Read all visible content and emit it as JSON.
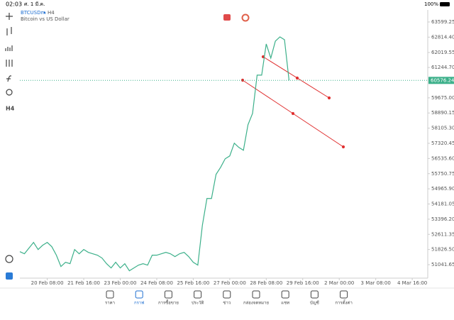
{
  "status_bar": {
    "time": "02:03",
    "date": "ศ. 1 มี.ค.",
    "battery": "100%"
  },
  "chart_header": {
    "symbol": "BTCUSDm",
    "timeframe": "H4",
    "description": "Bitcoin vs US Dollar"
  },
  "chart_data": {
    "type": "line",
    "color": "#3cb08a",
    "values": [
      51716,
      51606,
      51899,
      52193,
      51826,
      52046,
      52193,
      51973,
      51533,
      50946,
      51166,
      51093,
      51826,
      51606,
      51826,
      51679,
      51606,
      51533,
      51386,
      51093,
      50872,
      51166,
      50872,
      51093,
      50726,
      50872,
      51019,
      51093,
      51019,
      51533,
      51533,
      51606,
      51679,
      51606,
      51459,
      51606,
      51679,
      51459,
      51166,
      51019,
      53073,
      54467,
      54467,
      55714,
      56080,
      56521,
      56667,
      57327,
      57107,
      56961,
      58281,
      58868,
      60848,
      60848,
      62462,
      61729,
      62609,
      62829,
      62682,
      60576
    ],
    "xlim": [
      0,
      89.4
    ],
    "xticks": [
      {
        "value": 6,
        "label": "20 Feb 08:00"
      },
      {
        "value": 14,
        "label": "21 Feb 16:00"
      },
      {
        "value": 22,
        "label": "23 Feb 00:00"
      },
      {
        "value": 30,
        "label": "24 Feb 08:00"
      },
      {
        "value": 38,
        "label": "25 Feb 16:00"
      },
      {
        "value": 46,
        "label": "27 Feb 00:00"
      },
      {
        "value": 54,
        "label": "28 Feb 08:00"
      },
      {
        "value": 62,
        "label": "29 Feb 16:00"
      },
      {
        "value": 70,
        "label": "2 Mar 00:00"
      },
      {
        "value": 78,
        "label": "3 Mar 08:00"
      },
      {
        "value": 86,
        "label": "4 Mar 16:00"
      }
    ],
    "ylim": [
      50345,
      64222
    ],
    "yticks": [
      63599.25,
      {
        "value": 62814.4,
        "label": "62814.40"
      },
      62019.55,
      {
        "value": 61244.7,
        "label": "61244.70"
      },
      {
        "value": 59675,
        "label": "59675.00"
      },
      58890.15,
      {
        "value": 58105.3,
        "label": "58105.30"
      },
      57320.45,
      {
        "value": 56535.6,
        "label": "56535.60"
      },
      55750.75,
      {
        "value": 54965.9,
        "label": "54965.90"
      },
      54181.05,
      {
        "value": 53396.2,
        "label": "53396.20"
      },
      52611.35,
      {
        "value": 51826.5,
        "label": "51826.50"
      },
      51041.65
    ],
    "current_price": 60576.24
  },
  "nav": {
    "items": [
      "ราคา",
      "กราฟ",
      "การซื้อขาย",
      "ประวัติ",
      "ข่าว",
      "กล่องจดหมาย",
      "แชท",
      "บัญชี",
      "การตั้งค่า"
    ],
    "active": 1
  }
}
